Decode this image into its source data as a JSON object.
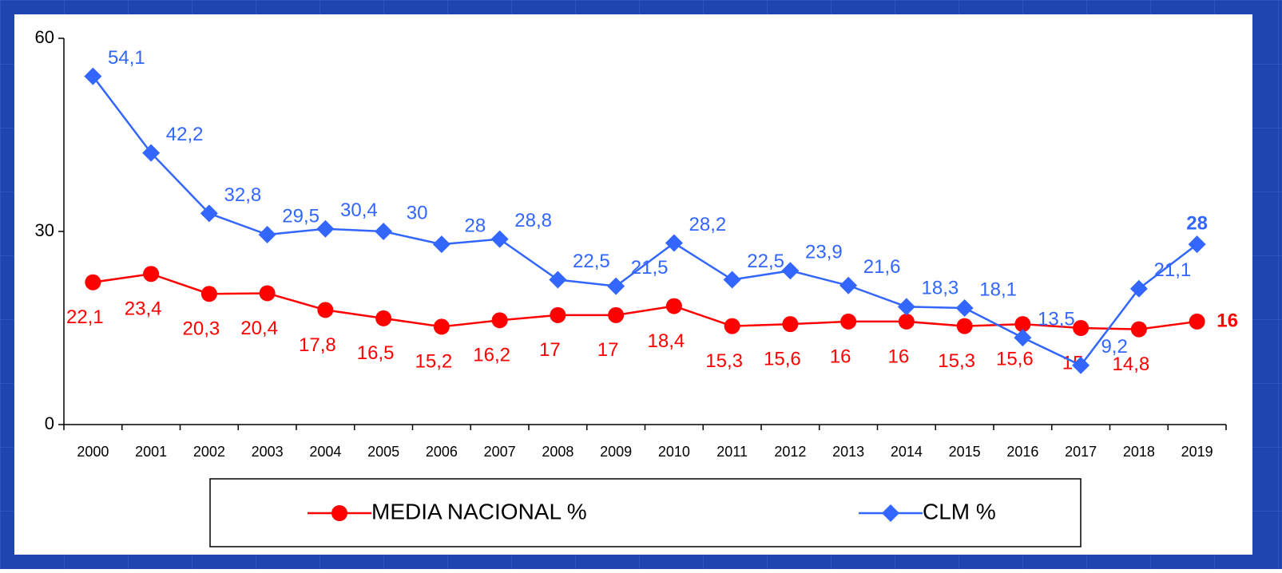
{
  "chart_data": {
    "type": "line",
    "categories": [
      "2000",
      "2001",
      "2002",
      "2003",
      "2004",
      "2005",
      "2006",
      "2007",
      "2008",
      "2009",
      "2010",
      "2011",
      "2012",
      "2013",
      "2014",
      "2015",
      "2016",
      "2017",
      "2018",
      "2019"
    ],
    "series": [
      {
        "name": "MEDIA NACIONAL %",
        "color": "#ff0000",
        "marker": "circle",
        "values": [
          22.1,
          23.4,
          20.3,
          20.4,
          17.8,
          16.5,
          15.2,
          16.2,
          17,
          17,
          18.4,
          15.3,
          15.6,
          16,
          16,
          15.3,
          15.6,
          15,
          14.8,
          16
        ],
        "value_labels": [
          "22,1",
          "23,4",
          "20,3",
          "20,4",
          "17,8",
          "16,5",
          "15,2",
          "16,2",
          "17",
          "17",
          "18,4",
          "15,3",
          "15,6",
          "16",
          "16",
          "15,3",
          "15,6",
          "15",
          "14,8",
          "16"
        ]
      },
      {
        "name": "CLM %",
        "color": "#3366ff",
        "marker": "diamond",
        "values": [
          54.1,
          42.2,
          32.8,
          29.5,
          30.4,
          30,
          28,
          28.8,
          22.5,
          21.5,
          28.2,
          22.5,
          23.9,
          21.6,
          18.3,
          18.1,
          13.5,
          9.2,
          21.1,
          28
        ],
        "value_labels": [
          "54,1",
          "42,2",
          "32,8",
          "29,5",
          "30,4",
          "30",
          "28",
          "28,8",
          "22,5",
          "21,5",
          "28,2",
          "22,5",
          "23,9",
          "21,6",
          "18,3",
          "18,1",
          "13,5",
          "9,2",
          "21,1",
          "28"
        ]
      }
    ],
    "ylim": [
      0,
      60
    ],
    "yticks": [
      0,
      30,
      60
    ]
  }
}
